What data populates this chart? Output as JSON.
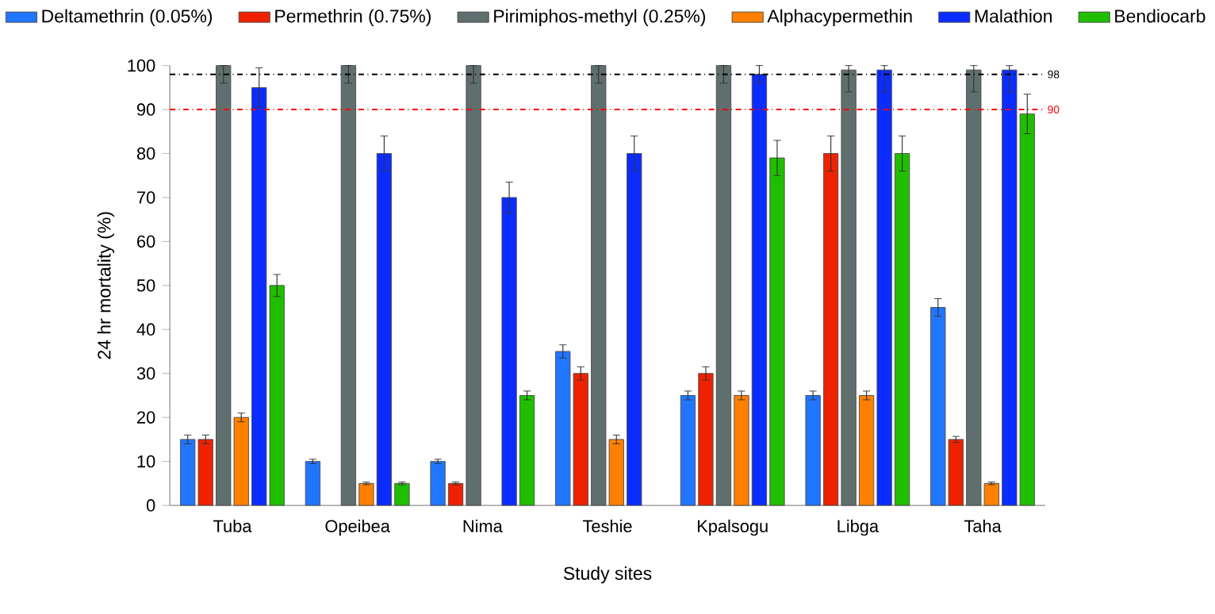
{
  "chart_data": {
    "type": "bar",
    "xlabel": "Study sites",
    "ylabel": "24 hr mortality (%)",
    "categories": [
      "Tuba",
      "Opeibea",
      "Nima",
      "Teshie",
      "Kpalsogu",
      "Libga",
      "Taha"
    ],
    "series": [
      {
        "name": "Deltamethrin (0.05%)",
        "color": "#2176ff",
        "values": [
          15,
          10,
          10,
          35,
          25,
          25,
          45
        ],
        "errors": [
          1,
          0.5,
          0.5,
          1.5,
          1,
          1,
          2
        ]
      },
      {
        "name": "Permethrin (0.75%)",
        "color": "#ee2200",
        "values": [
          15,
          null,
          5,
          30,
          30,
          80,
          15
        ],
        "errors": [
          1,
          null,
          0.3,
          1.5,
          1.5,
          4,
          0.7
        ]
      },
      {
        "name": "Pirimiphos-methyl (0.25%)",
        "color": "#5f6f6d",
        "values": [
          100,
          100,
          100,
          100,
          100,
          99,
          99
        ],
        "errors": [
          [
            96,
            100
          ],
          [
            96,
            100
          ],
          [
            96,
            100
          ],
          [
            96,
            100
          ],
          [
            96,
            100
          ],
          [
            94,
            100
          ],
          [
            94,
            100
          ]
        ]
      },
      {
        "name": "Alphacypermethin",
        "color": "#ff8000",
        "values": [
          20,
          5,
          null,
          15,
          25,
          25,
          5
        ],
        "errors": [
          1,
          0.3,
          null,
          1,
          1,
          1,
          0.3
        ]
      },
      {
        "name": "Malathion",
        "color": "#0b2cff",
        "values": [
          95,
          80,
          70,
          80,
          98,
          99,
          99
        ],
        "errors": [
          4.5,
          4,
          3.5,
          4,
          2,
          [
            94,
            100
          ],
          [
            94,
            100
          ]
        ]
      },
      {
        "name": "Bendiocarb",
        "color": "#1fbf00",
        "values": [
          50,
          5,
          25,
          null,
          79,
          80,
          89
        ],
        "errors": [
          2.5,
          0.3,
          1,
          null,
          4,
          4,
          4.5
        ]
      }
    ],
    "ylim": [
      0,
      100
    ],
    "yticks": [
      0,
      10,
      20,
      30,
      40,
      50,
      60,
      70,
      80,
      90,
      100
    ],
    "ref_lines": [
      {
        "axis": "y",
        "value": 98,
        "label": "98",
        "color": "#000000",
        "line_style": "dashdot"
      },
      {
        "axis": "y",
        "value": 90,
        "label": "90",
        "color": "#ff0000",
        "line_style": "dashdot"
      }
    ],
    "grid": false,
    "legend": "top"
  }
}
